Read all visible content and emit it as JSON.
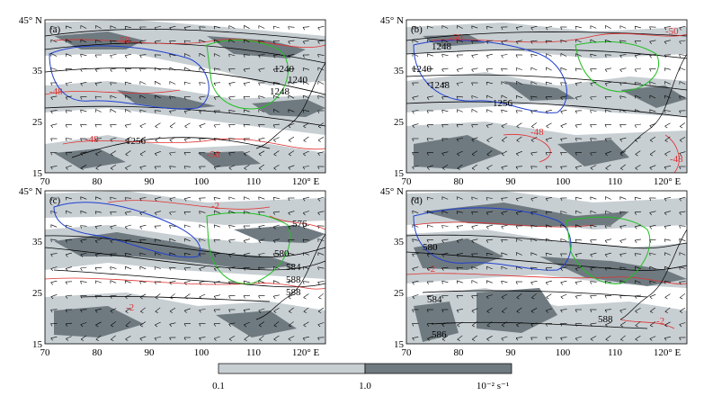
{
  "figure": {
    "panels": [
      {
        "label": "(a)",
        "lat_labels": [
          "45° N",
          "35",
          "25",
          "15"
        ],
        "lon_labels": [
          "70",
          "80",
          "90",
          "100",
          "110",
          "120° E"
        ],
        "contour_labels_black": [
          "1240",
          "1248",
          "1240",
          "1256"
        ],
        "contour_labels_red": [
          "-50",
          "-48",
          "-48",
          "-50"
        ]
      },
      {
        "label": "(b)",
        "lat_labels": [
          "45° N",
          "35",
          "25",
          "15"
        ],
        "lon_labels": [
          "70",
          "80",
          "90",
          "100",
          "110",
          "120° E"
        ],
        "contour_labels_black": [
          "1248",
          "1240",
          "1248",
          "1256"
        ],
        "contour_labels_red": [
          "-50",
          "-48",
          "-50",
          "-48"
        ]
      },
      {
        "label": "(c)",
        "lat_labels": [
          "45° N",
          "35",
          "25",
          "15"
        ],
        "lon_labels": [
          "70",
          "80",
          "90",
          "100",
          "110",
          "120° E"
        ],
        "contour_labels_black": [
          "576",
          "580",
          "584",
          "588",
          "588"
        ],
        "contour_labels_red": [
          "-2",
          "-2"
        ]
      },
      {
        "label": "(d)",
        "lat_labels": [
          "45° N",
          "35",
          "25",
          "15"
        ],
        "lon_labels": [
          "70",
          "80",
          "90",
          "100",
          "110",
          "120° E"
        ],
        "contour_labels_black": [
          "580",
          "584",
          "586",
          "588"
        ],
        "contour_labels_red": [
          "-2",
          "-2"
        ]
      }
    ],
    "colorbar": {
      "tick_labels": [
        "0.1",
        "1.0"
      ],
      "unit": "10⁻² s⁻¹",
      "colors": [
        "#c8cfd3",
        "#6f7a80"
      ]
    },
    "colors": {
      "shade_light": "#c8cfd3",
      "shade_dark": "#6f7a80",
      "contour_black": "#000000",
      "contour_red": "#e03030",
      "contour_blue": "#2040d0",
      "contour_green": "#20c020"
    }
  }
}
